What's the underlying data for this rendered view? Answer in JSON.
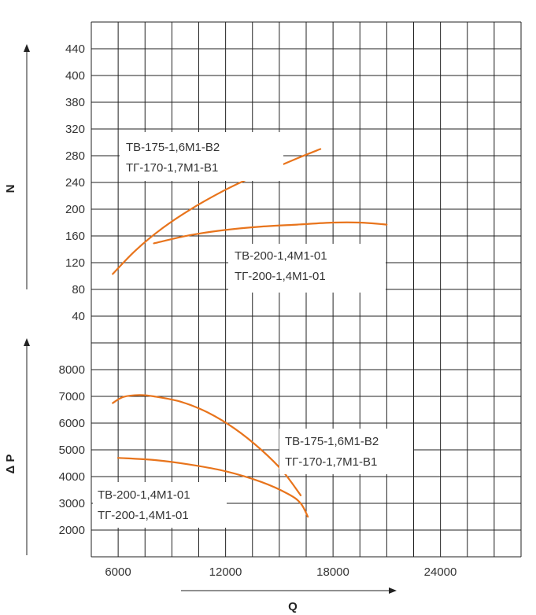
{
  "chart_data": {
    "type": "line",
    "x_axis": {
      "label": "Q",
      "ticks": [
        6000,
        12000,
        18000,
        24000
      ],
      "range": [
        4500,
        27000
      ]
    },
    "panels": [
      {
        "id": "N",
        "ylabel": "N",
        "ticks": [
          40,
          80,
          120,
          160,
          200,
          240,
          280,
          320,
          380,
          400,
          440
        ],
        "series": [
          {
            "name": "ТВ-175-1,6М1-В2 / ТГ-170-1,7М1-В1",
            "x": [
              5700,
              7000,
              8500,
              10000,
              11500,
              13000,
              14500,
              16000,
              17300
            ],
            "y": [
              103,
              139,
              172,
              199,
              222,
              242,
              259,
              276,
              290
            ]
          },
          {
            "name": "ТВ-200-1,4М1-01 / ТГ-200-1,4М1-01",
            "x": [
              8000,
              10000,
              12000,
              14000,
              16000,
              18000,
              19500,
              21000
            ],
            "y": [
              149,
              161,
              169,
              174,
              177,
              180,
              180,
              177
            ]
          }
        ]
      },
      {
        "id": "dP",
        "ylabel": "Δ P",
        "ticks": [
          2000,
          3000,
          4000,
          5000,
          6000,
          7000,
          8000
        ],
        "series": [
          {
            "name": "ТВ-175-1,6М1-В2 / ТГ-170-1,7М1-В1",
            "x": [
              5700,
              6300,
              7200,
              8000,
              9500,
              11000,
              12500,
              14000,
              15200,
              16200
            ],
            "y": [
              6750,
              6980,
              7050,
              7000,
              6800,
              6400,
              5800,
              5000,
              4200,
              3300
            ]
          },
          {
            "name": "ТВ-200-1,4М1-01 / ТГ-200-1,4М1-01",
            "x": [
              6000,
              8000,
              10000,
              12000,
              14000,
              15500,
              16200,
              16600
            ],
            "y": [
              4700,
              4620,
              4450,
              4200,
              3800,
              3350,
              3000,
              2500
            ]
          }
        ]
      }
    ],
    "labels": {
      "n_upper": [
        "ТВ-175-1,6М1-В2",
        "ТГ-170-1,7М1-В1"
      ],
      "n_lower": [
        "ТВ-200-1,4М1-01",
        "ТГ-200-1,4М1-01"
      ],
      "dp_upper": [
        "ТВ-175-1,6М1-В2",
        "ТГ-170-1,7М1-В1"
      ],
      "dp_lower": [
        "ТВ-200-1,4М1-01",
        "ТГ-200-1,4М1-01"
      ]
    },
    "colors": {
      "curve": "#e8741c",
      "grid": "#222222",
      "text": "#333333"
    },
    "grid": true
  }
}
